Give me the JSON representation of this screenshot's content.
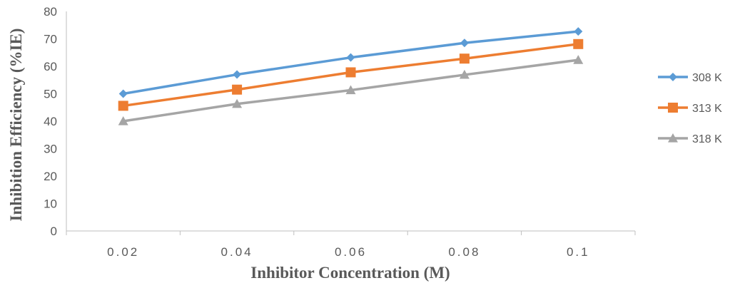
{
  "chart_data": {
    "type": "line",
    "categories": [
      "0.02",
      "0.04",
      "0.06",
      "0.08",
      "0.1"
    ],
    "series": [
      {
        "name": "308 K",
        "values": [
          50,
          57,
          63.2,
          68.5,
          72.7
        ],
        "color": "#5B9BD5",
        "marker": "diamond"
      },
      {
        "name": "313 K",
        "values": [
          45.6,
          51.5,
          57.8,
          62.8,
          68.1
        ],
        "color": "#ED7D31",
        "marker": "square"
      },
      {
        "name": "318 K",
        "values": [
          40,
          46.3,
          51.3,
          56.9,
          62.3
        ],
        "color": "#A5A5A5",
        "marker": "triangle"
      }
    ],
    "xlabel": "Inhibitor Concentration (M)",
    "ylabel": "Inhibition Efficiency (%IE)",
    "ylim": [
      0,
      80
    ],
    "yticks": [
      0,
      10,
      20,
      30,
      40,
      50,
      60,
      70,
      80
    ],
    "grid": false,
    "legend_position": "right"
  }
}
